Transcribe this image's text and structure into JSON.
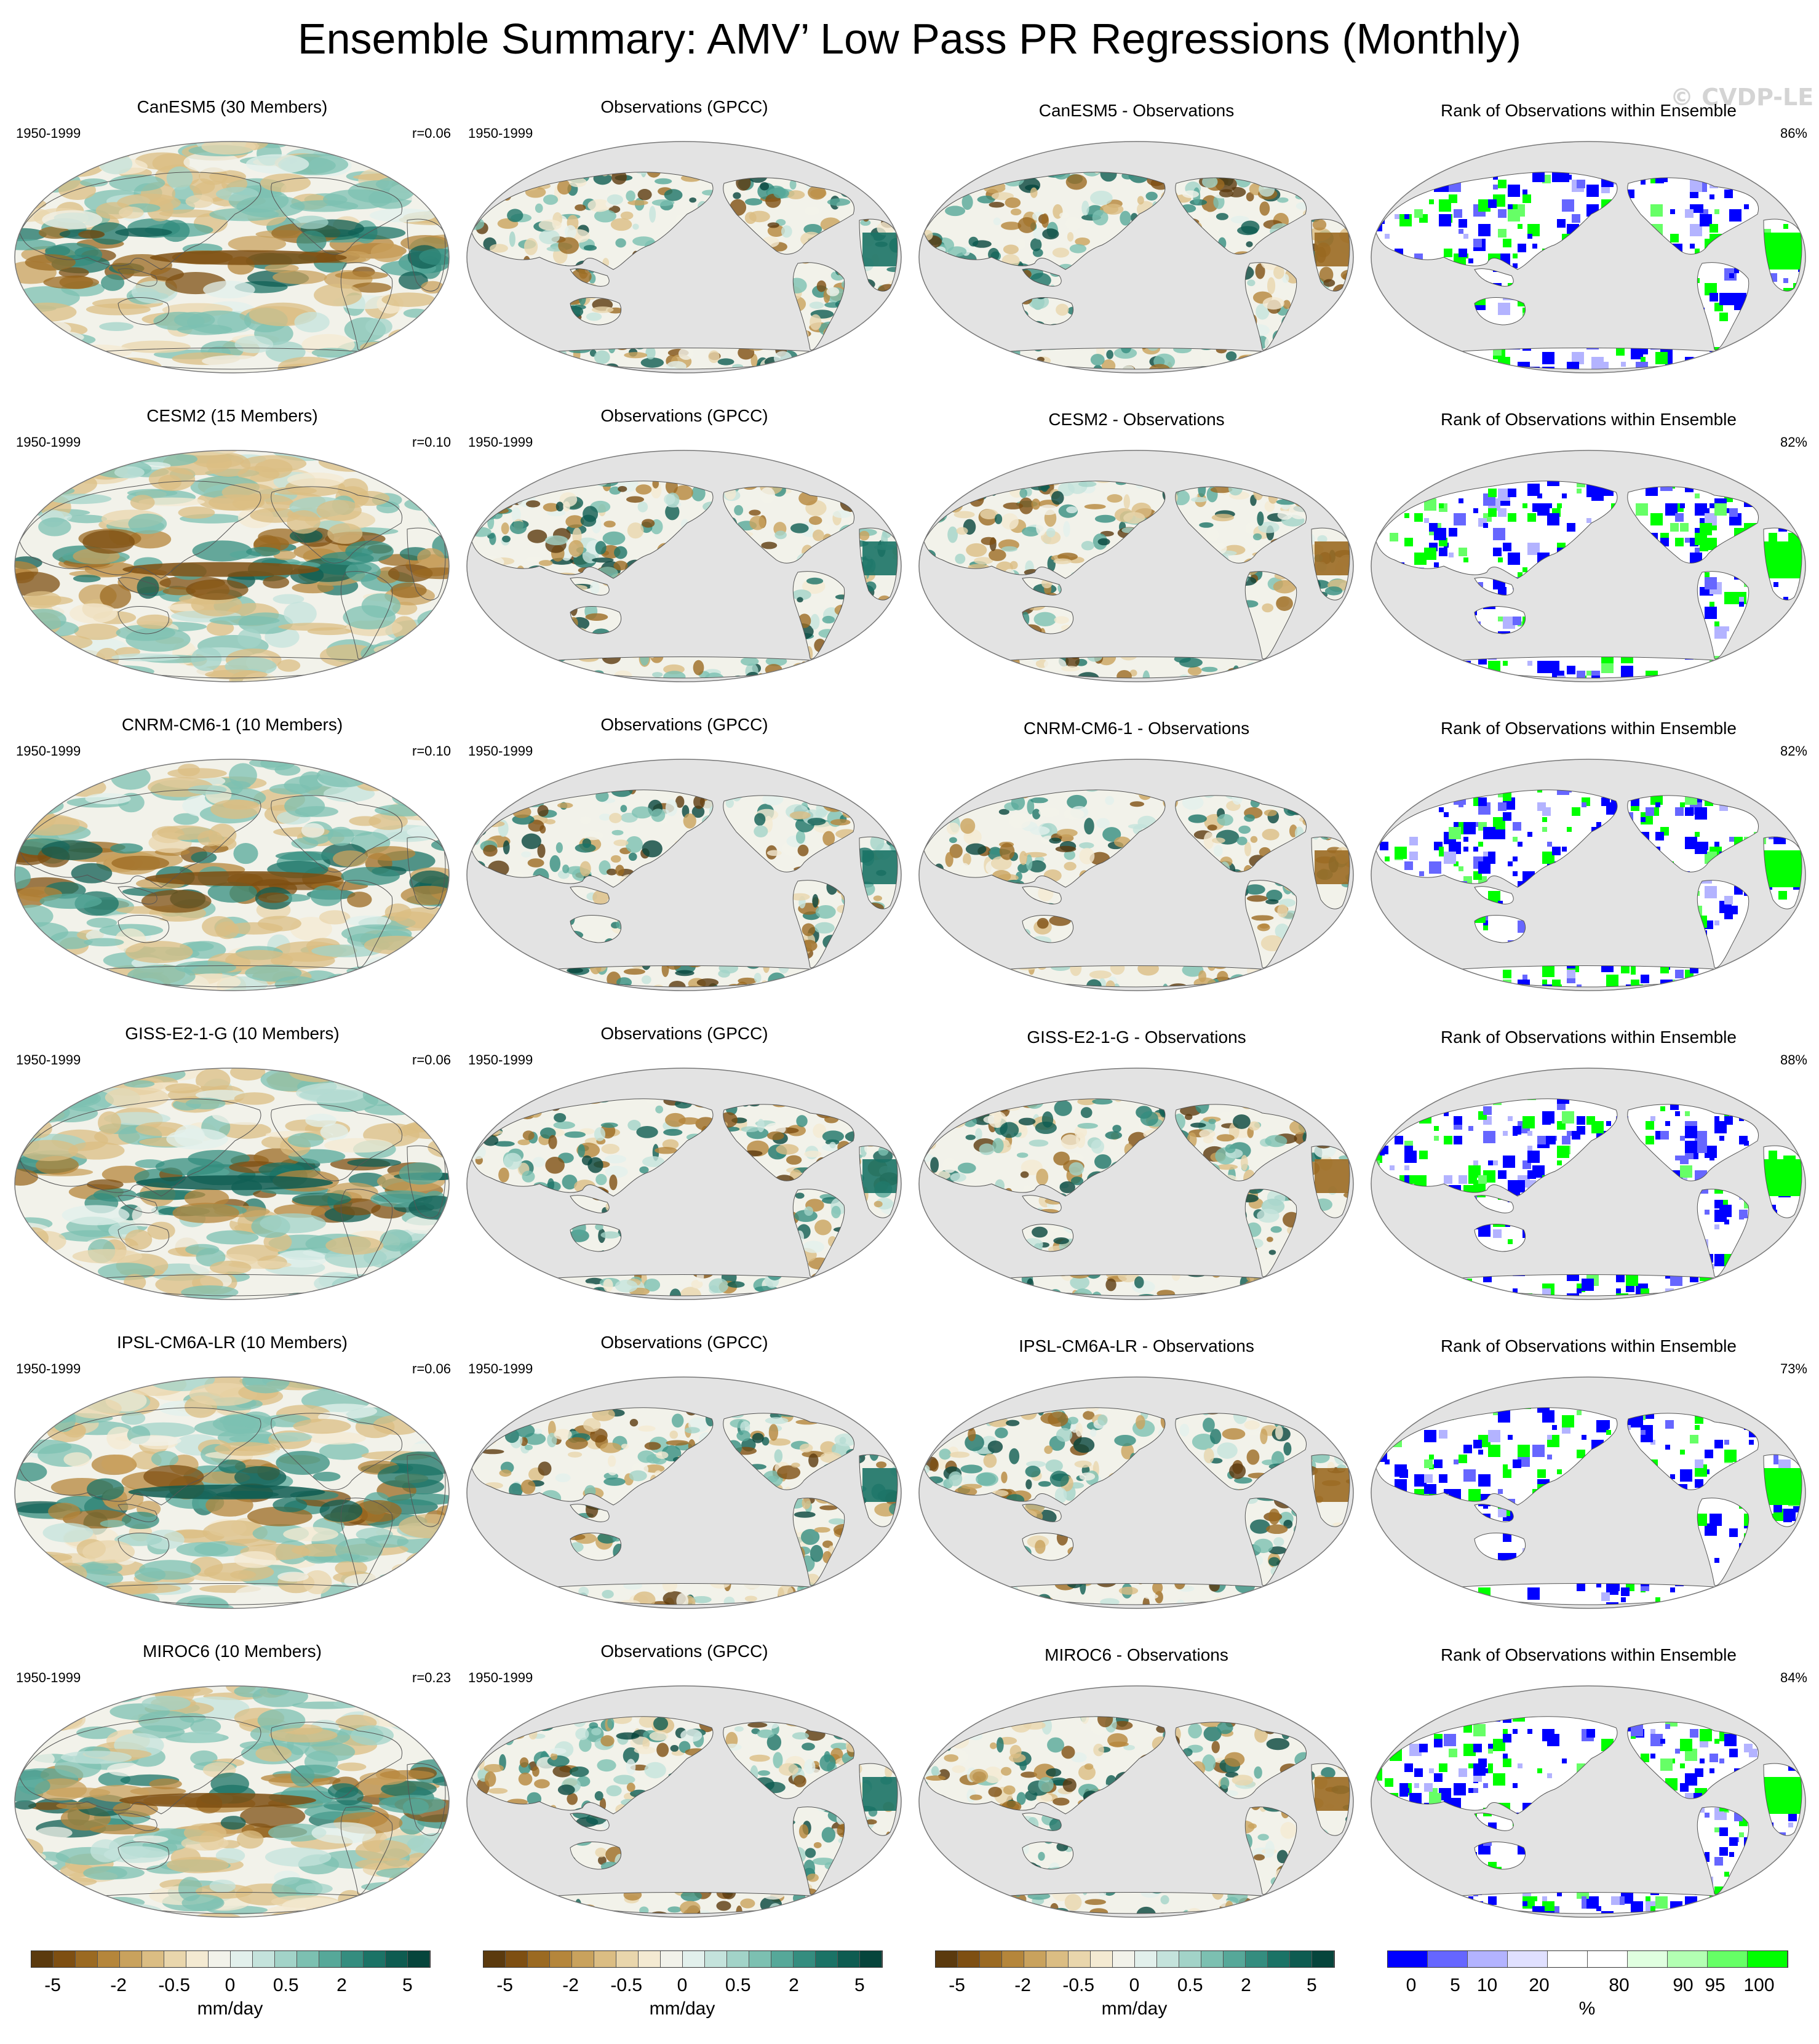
{
  "title": "Ensemble Summary: AMV’ Low Pass PR Regressions (Monthly)",
  "watermark": "© CVDP-LE",
  "period": "1950-1999",
  "obs_title": "Observations (GPCC)",
  "rank_title": "Rank of Observations within Ensemble",
  "rows": [
    {
      "model": "CanESM5",
      "ens_title": "CanESM5 (30 Members)",
      "r": "r=0.06",
      "diff_title": "CanESM5 - Observations",
      "pct": "86%"
    },
    {
      "model": "CESM2",
      "ens_title": "CESM2 (15 Members)",
      "r": "r=0.10",
      "diff_title": "CESM2 - Observations",
      "pct": "82%"
    },
    {
      "model": "CNRM-CM6-1",
      "ens_title": "CNRM-CM6-1 (10 Members)",
      "r": "r=0.10",
      "diff_title": "CNRM-CM6-1 - Observations",
      "pct": "82%"
    },
    {
      "model": "GISS-E2-1-G",
      "ens_title": "GISS-E2-1-G (10 Members)",
      "r": "r=0.06",
      "diff_title": "GISS-E2-1-G - Observations",
      "pct": "88%"
    },
    {
      "model": "IPSL-CM6A-LR",
      "ens_title": "IPSL-CM6A-LR (10 Members)",
      "r": "r=0.06",
      "diff_title": "IPSL-CM6A-LR - Observations",
      "pct": "73%"
    },
    {
      "model": "MIROC6",
      "ens_title": "MIROC6 (10 Members)",
      "r": "r=0.23",
      "diff_title": "MIROC6 - Observations",
      "pct": "84%"
    }
  ],
  "colorbars": {
    "pr": {
      "unit": "mm/day",
      "ticks": [
        "-5",
        "-2",
        "-0.5",
        "0",
        "0.5",
        "2",
        "5"
      ],
      "colors": [
        "#5b3a0e",
        "#7e4f12",
        "#9b6a22",
        "#b5863b",
        "#c9a25d",
        "#dbbd83",
        "#e9d6ac",
        "#f4ead2",
        "#f2f2ea",
        "#e2f0ec",
        "#c4e3dc",
        "#a2d3c8",
        "#7cc0b1",
        "#56a899",
        "#348d7f",
        "#1b7366",
        "#0e5c51",
        "#06453c"
      ]
    },
    "rank": {
      "unit": "%",
      "ticks": [
        "0",
        "5",
        "10",
        "20",
        "80",
        "90",
        "95",
        "100"
      ],
      "colors": [
        "#0000ff",
        "#6666ff",
        "#b3b3ff",
        "#e0e0ff",
        "#ffffff",
        "#ffffff",
        "#e0ffe0",
        "#b3ffb3",
        "#66ff66",
        "#00ff00"
      ]
    }
  }
}
